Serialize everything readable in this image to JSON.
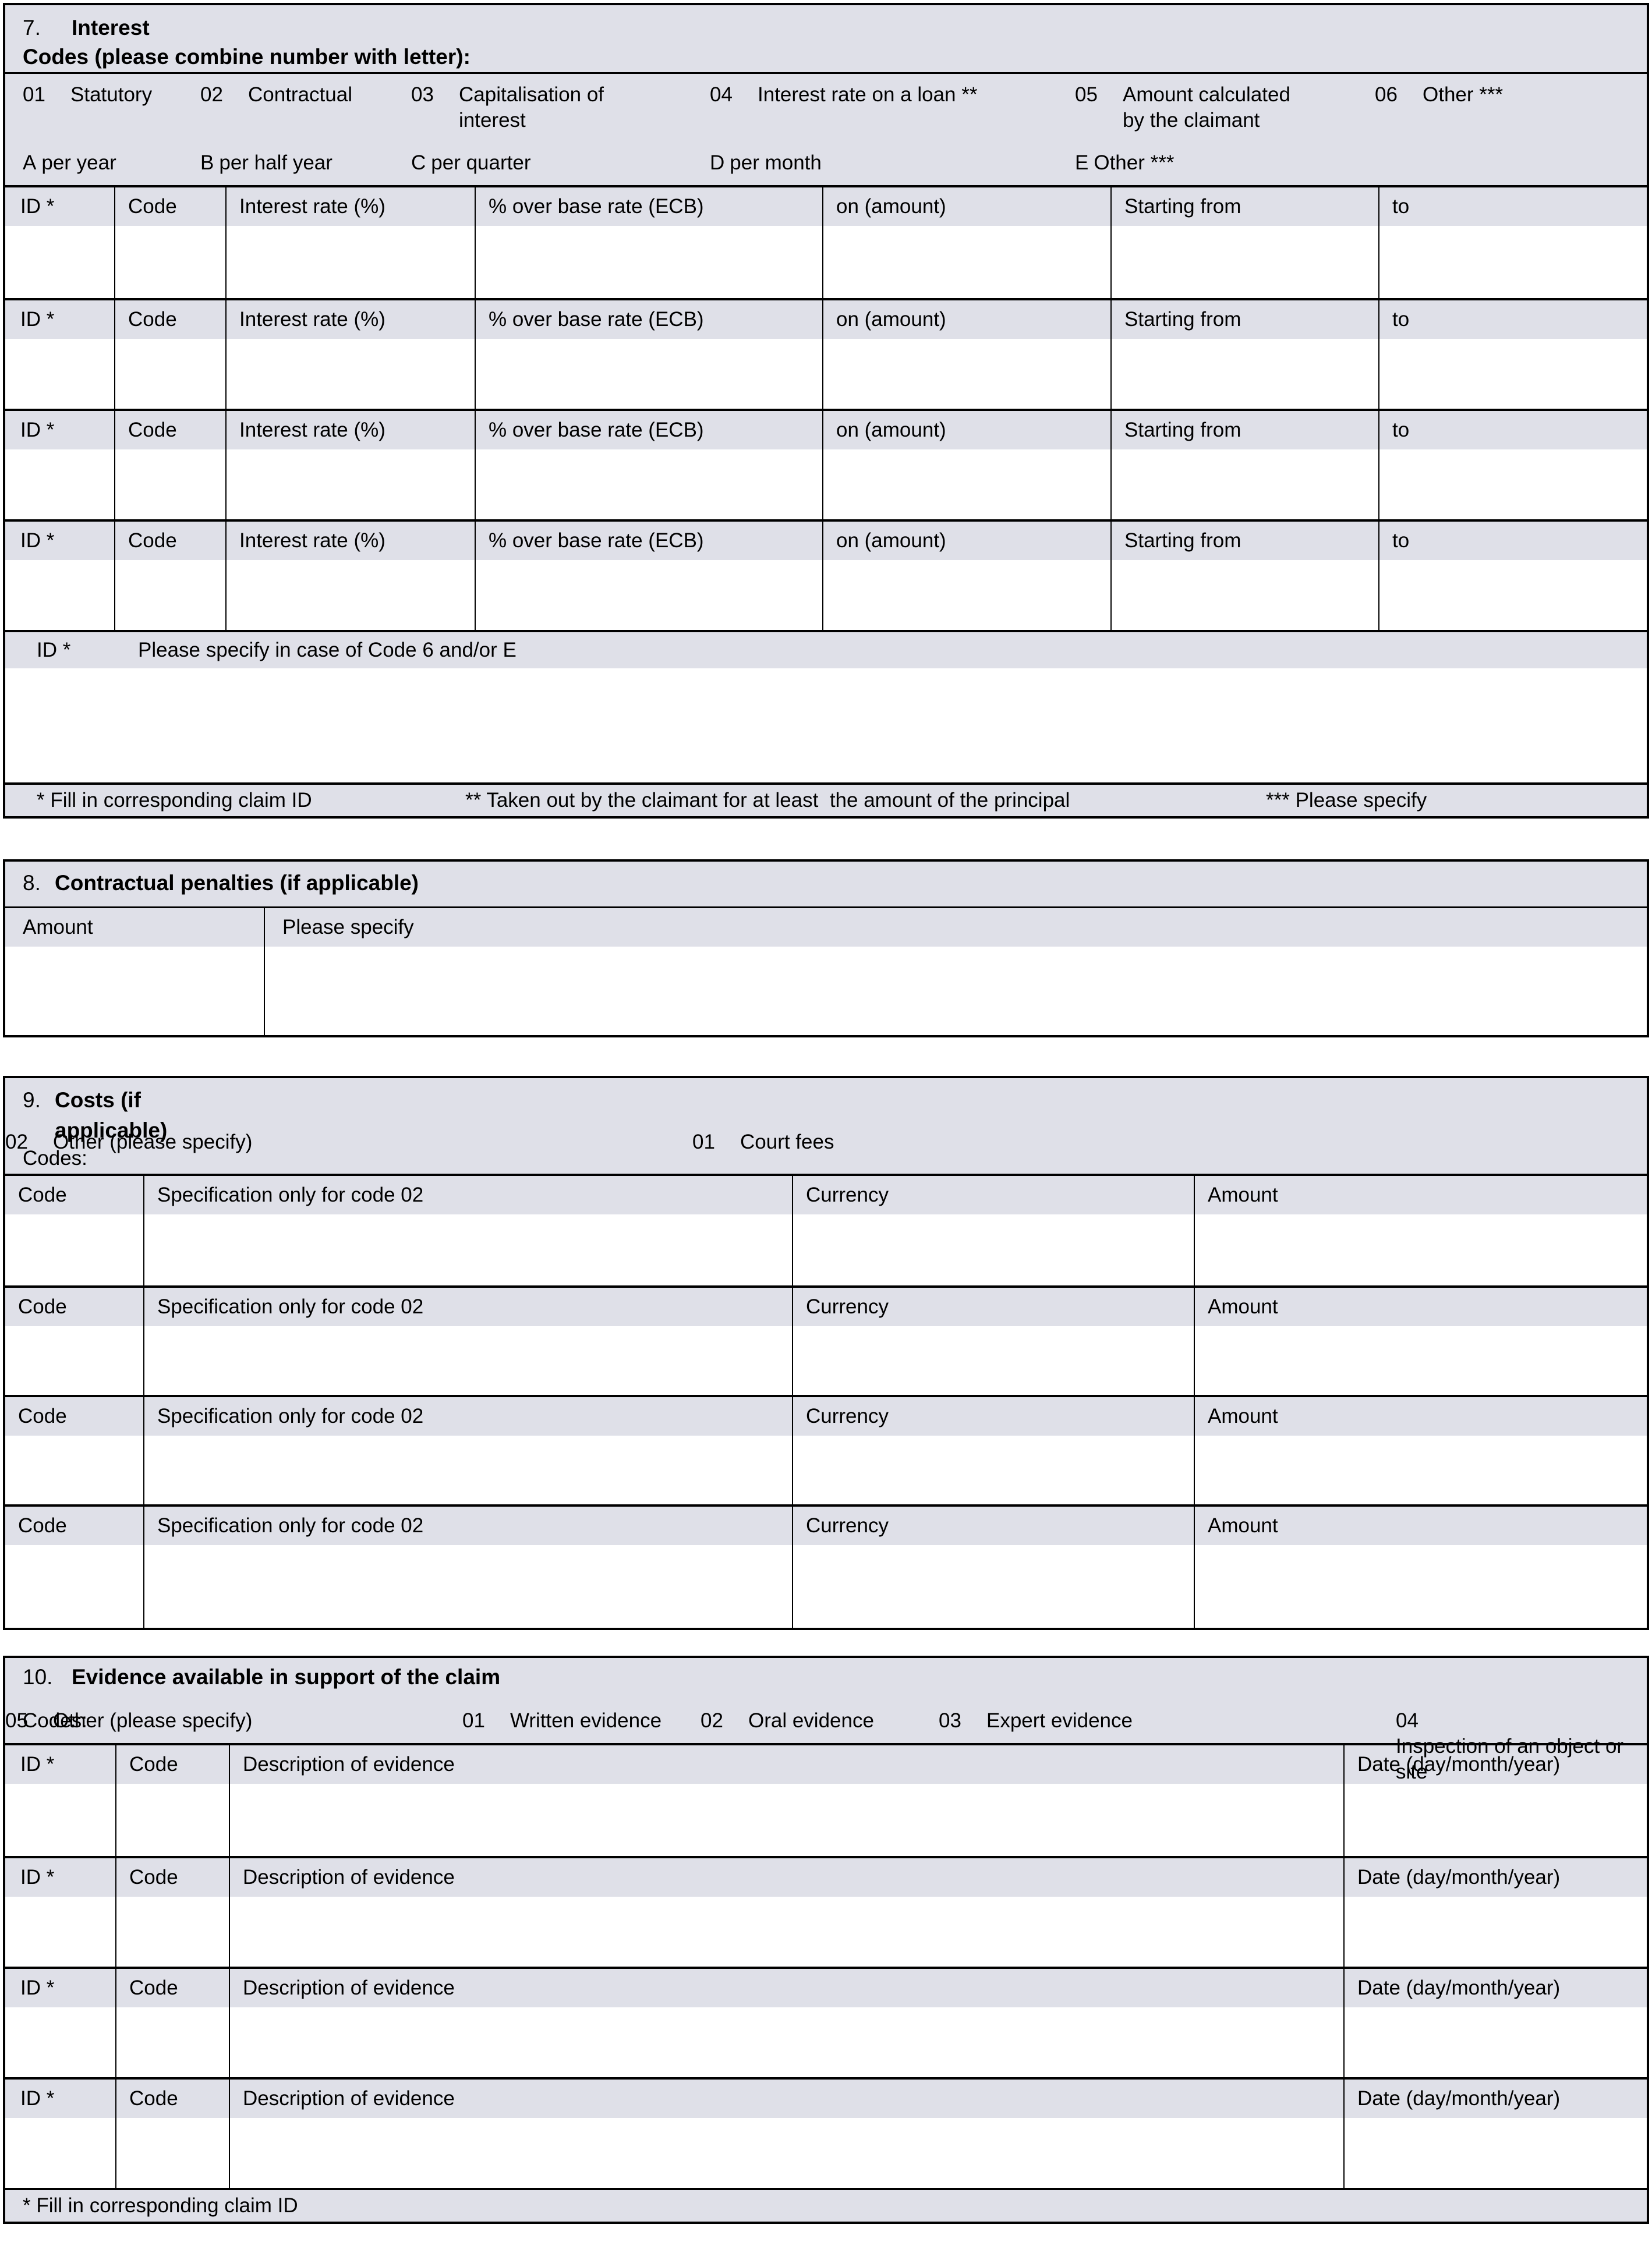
{
  "colors": {
    "header_bg": "#dfe0e8",
    "border": "#000000",
    "cell_bg": "#ffffff"
  },
  "section7": {
    "number": "7.",
    "title": "Interest",
    "subtitle": "Codes (please combine number with letter):",
    "number_codes": [
      {
        "num": "01",
        "label": "Statutory"
      },
      {
        "num": "02",
        "label": "Contractual"
      },
      {
        "num": "03",
        "label": "Capitalisation of interest"
      },
      {
        "num": "04",
        "label": "Interest rate on a loan **"
      },
      {
        "num": "05",
        "label": "Amount calculated by the claimant"
      },
      {
        "num": "06",
        "label": "Other ***"
      }
    ],
    "letter_codes": [
      {
        "letter": "A",
        "label": "per year"
      },
      {
        "letter": "B",
        "label": "per half year"
      },
      {
        "letter": "C",
        "label": "per quarter"
      },
      {
        "letter": "D",
        "label": "per month"
      },
      {
        "letter": "E",
        "label": "Other ***"
      }
    ],
    "columns": [
      "ID *",
      "Code",
      "Interest rate (%)",
      "% over base rate (ECB)",
      "on (amount)",
      "Starting from",
      "to"
    ],
    "row_count": 4,
    "specify_row": {
      "id_label": "ID *",
      "label": "Please specify in case of Code 6 and/or E"
    },
    "footnotes": [
      "* Fill in corresponding claim ID",
      "** Taken out by the claimant for at least  the amount of the principal",
      "*** Please specify"
    ]
  },
  "section8": {
    "number": "8.",
    "title": "Contractual penalties (if applicable)",
    "columns": [
      "Amount",
      "Please specify"
    ]
  },
  "section9": {
    "number": "9.",
    "title": "Costs (if applicable)",
    "codes_label": "Codes:",
    "codes": [
      {
        "num": "01",
        "label": "Court fees"
      },
      {
        "num": "02",
        "label": "Other (please specify)"
      }
    ],
    "columns": [
      "Code",
      "Specification only for code 02",
      "Currency",
      "Amount"
    ],
    "row_count": 4
  },
  "section10": {
    "number": "10.",
    "title": "Evidence available in support of the claim",
    "codes_label": "Codes:",
    "codes": [
      {
        "num": "01",
        "label": "Written evidence"
      },
      {
        "num": "02",
        "label": "Oral evidence"
      },
      {
        "num": "03",
        "label": "Expert evidence"
      },
      {
        "num": "04",
        "label": "Inspection of an object or site"
      },
      {
        "num": "05",
        "label": "Other (please specify)"
      }
    ],
    "columns": [
      "ID *",
      "Code",
      "Description of evidence",
      "Date (day/month/year)"
    ],
    "row_count": 4,
    "footnote": "* Fill in corresponding claim ID"
  }
}
